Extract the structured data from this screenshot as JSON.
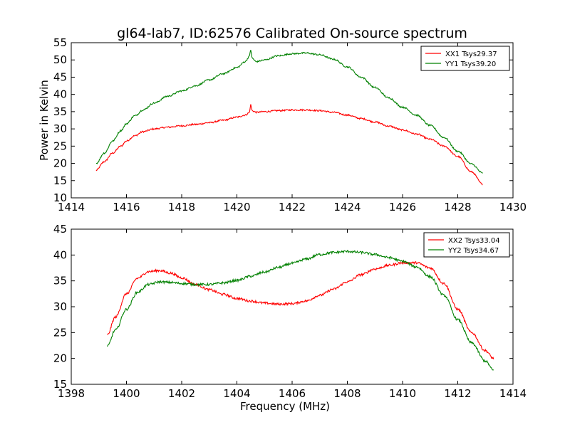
{
  "title": "gl64-lab7, ID:62576 Calibrated On-source spectrum",
  "chart_data": [
    {
      "type": "line",
      "title": "gl64-lab7, ID:62576 Calibrated On-source spectrum",
      "xlabel": "",
      "ylabel": "Power in Kelvin",
      "xlim": [
        1414,
        1430
      ],
      "ylim": [
        10,
        55
      ],
      "xticks": [
        "1414",
        "1416",
        "1418",
        "1420",
        "1422",
        "1424",
        "1426",
        "1428",
        "1430"
      ],
      "yticks": [
        "10",
        "15",
        "20",
        "25",
        "30",
        "35",
        "40",
        "45",
        "50",
        "55"
      ],
      "grid": false,
      "legend_position": "top-right",
      "series": [
        {
          "name": "XX1 Tsys29.37",
          "color": "#ff0000",
          "x": [
            1414.9,
            1415.2,
            1415.5,
            1415.8,
            1416.0,
            1416.3,
            1416.6,
            1417.0,
            1417.5,
            1418.0,
            1418.5,
            1419.0,
            1419.5,
            1420.0,
            1420.3,
            1420.45,
            1420.5,
            1420.55,
            1420.7,
            1421.0,
            1421.5,
            1422.0,
            1422.5,
            1423.0,
            1423.5,
            1424.0,
            1424.5,
            1425.0,
            1425.5,
            1426.0,
            1426.5,
            1427.0,
            1427.5,
            1428.0,
            1428.5,
            1428.9
          ],
          "y": [
            18,
            20.5,
            23,
            25,
            26.5,
            28,
            29.2,
            30,
            30.5,
            30.9,
            31.3,
            31.8,
            32.5,
            33.4,
            34,
            34.7,
            37,
            35.3,
            34.8,
            35,
            35.3,
            35.5,
            35.5,
            35.3,
            34.8,
            34,
            33,
            32,
            30.8,
            29.7,
            28.5,
            27,
            25,
            22,
            17.5,
            14
          ]
        },
        {
          "name": "YY1 Tsys39.20",
          "color": "#008000",
          "x": [
            1414.9,
            1415.2,
            1415.5,
            1415.8,
            1416.0,
            1416.3,
            1416.6,
            1417.0,
            1417.5,
            1418.0,
            1418.5,
            1419.0,
            1419.5,
            1420.0,
            1420.3,
            1420.45,
            1420.5,
            1420.55,
            1420.7,
            1421.0,
            1421.5,
            1422.0,
            1422.5,
            1423.0,
            1423.5,
            1424.0,
            1424.5,
            1425.0,
            1425.5,
            1426.0,
            1426.5,
            1427.0,
            1427.5,
            1428.0,
            1428.5,
            1428.9
          ],
          "y": [
            20,
            23,
            26.5,
            29.5,
            31.5,
            33.8,
            35.5,
            37.5,
            39.5,
            41,
            42.5,
            44.2,
            46,
            47.8,
            49.5,
            51,
            53,
            50.5,
            49.5,
            50,
            51.2,
            51.8,
            52,
            51.5,
            50.2,
            48,
            45,
            42,
            39,
            36.3,
            34,
            31,
            27.5,
            23.5,
            19.8,
            17.2
          ]
        }
      ]
    },
    {
      "type": "line",
      "title": "",
      "xlabel": "Frequency (MHz)",
      "ylabel": "",
      "xlim": [
        1398,
        1414
      ],
      "ylim": [
        15,
        45
      ],
      "xticks": [
        "1398",
        "1400",
        "1402",
        "1404",
        "1406",
        "1408",
        "1410",
        "1412",
        "1414"
      ],
      "yticks": [
        "15",
        "20",
        "25",
        "30",
        "35",
        "40",
        "45"
      ],
      "grid": false,
      "legend_position": "top-right",
      "series": [
        {
          "name": "XX2 Tsys33.04",
          "color": "#ff0000",
          "x": [
            1399.3,
            1399.6,
            1400.0,
            1400.4,
            1400.8,
            1401.2,
            1401.6,
            1402.0,
            1402.5,
            1403.0,
            1403.5,
            1404.0,
            1404.5,
            1405.0,
            1405.5,
            1406.0,
            1406.5,
            1407.0,
            1407.5,
            1408.0,
            1408.5,
            1409.0,
            1409.5,
            1410.0,
            1410.5,
            1411.0,
            1411.5,
            1412.0,
            1412.5,
            1413.0,
            1413.3
          ],
          "y": [
            24.5,
            28,
            32.5,
            35.5,
            36.8,
            37,
            36.5,
            35.6,
            34.3,
            33.3,
            32.4,
            31.6,
            31.1,
            30.7,
            30.5,
            30.6,
            31.1,
            32.2,
            33.4,
            34.8,
            36.2,
            37.3,
            38,
            38.5,
            38.5,
            37.5,
            34.5,
            29.5,
            25,
            21.5,
            20
          ]
        },
        {
          "name": "YY2 Tsys34.67",
          "color": "#008000",
          "x": [
            1399.3,
            1399.6,
            1400.0,
            1400.4,
            1400.8,
            1401.2,
            1401.6,
            1402.0,
            1402.5,
            1403.0,
            1403.5,
            1404.0,
            1404.5,
            1405.0,
            1405.5,
            1406.0,
            1406.5,
            1407.0,
            1407.5,
            1408.0,
            1408.5,
            1409.0,
            1409.5,
            1410.0,
            1410.5,
            1411.0,
            1411.5,
            1412.0,
            1412.5,
            1413.0,
            1413.3
          ],
          "y": [
            22.3,
            25.5,
            29.5,
            32.8,
            34.3,
            34.8,
            34.7,
            34.5,
            34.3,
            34.3,
            34.6,
            35.1,
            35.9,
            36.7,
            37.6,
            38.4,
            39.2,
            40.1,
            40.5,
            40.7,
            40.5,
            40.1,
            39.5,
            38.8,
            37.7,
            35.8,
            32.2,
            27.5,
            23,
            19.5,
            17.7
          ]
        }
      ]
    }
  ]
}
